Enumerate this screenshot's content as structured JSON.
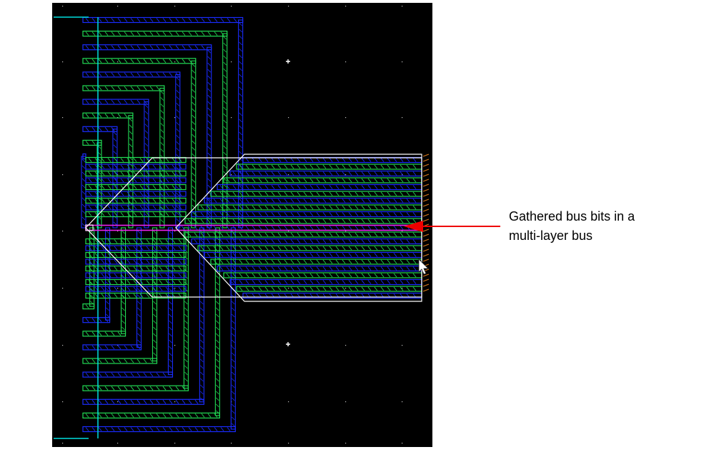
{
  "annotation": {
    "line1": "Gathered bus bits in a",
    "line2": "multi-layer bus"
  },
  "colors": {
    "background": "#000000",
    "green_layer": "#22dd55",
    "blue_layer": "#1a2cff",
    "cyan_layer": "#00dddd",
    "white_outline": "#ffffff",
    "magenta_highlight": "#ee22ee",
    "orange_pins": "#dd7a1a",
    "arrow_red": "#ee0000"
  },
  "icons": {
    "cursor": "mouse-pointer-icon"
  }
}
